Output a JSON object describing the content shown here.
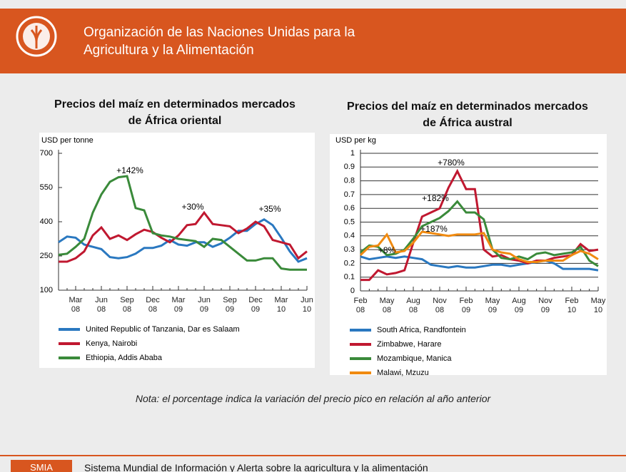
{
  "header": {
    "title_line1": "Organización de las Naciones Unidas para la",
    "title_line2": "Agricultura y la Alimentación"
  },
  "chart_data": [
    {
      "type": "line",
      "title": "Precios del maíz en determinados mercados de África oriental",
      "y_label": "USD per tonne",
      "categories": [
        null,
        null,
        "Mar 08",
        null,
        null,
        "Jun 08",
        null,
        null,
        "Sep 08",
        null,
        null,
        "Dec 08",
        null,
        null,
        "Mar 09",
        null,
        null,
        "Jun 09",
        null,
        null,
        "Sep 09",
        null,
        null,
        "Dec 09",
        null,
        null,
        "Mar 10",
        null,
        null,
        "Jun 10"
      ],
      "ylim": [
        100,
        700
      ],
      "yticks": [
        100,
        250,
        400,
        550,
        700
      ],
      "grid": false,
      "series": [
        {
          "name": "United Republic of Tanzania, Dar es Salaam",
          "color": "#2a78c0",
          "values": [
            310,
            335,
            330,
            300,
            290,
            280,
            245,
            240,
            245,
            260,
            285,
            285,
            295,
            320,
            300,
            295,
            310,
            310,
            290,
            305,
            330,
            360,
            360,
            390,
            410,
            385,
            330,
            270,
            225,
            240
          ]
        },
        {
          "name": "Kenya, Nairobi",
          "color": "#c01830",
          "values": [
            225,
            225,
            240,
            270,
            340,
            375,
            325,
            340,
            320,
            345,
            365,
            355,
            330,
            310,
            340,
            385,
            390,
            440,
            390,
            385,
            380,
            350,
            370,
            400,
            380,
            320,
            310,
            300,
            240,
            270
          ]
        },
        {
          "name": "Ethiopia, Addis Ababa",
          "color": "#3a8a3a",
          "values": [
            255,
            260,
            290,
            325,
            440,
            520,
            575,
            595,
            600,
            460,
            450,
            350,
            340,
            335,
            325,
            320,
            315,
            290,
            325,
            320,
            290,
            260,
            230,
            230,
            240,
            240,
            195,
            190,
            190,
            190
          ]
        }
      ],
      "annotations": [
        "+142%",
        "+30%",
        "+35%"
      ]
    },
    {
      "type": "line",
      "title": "Precios del maíz en determinados mercados de África austral",
      "y_label": "USD per kg",
      "categories": [
        "Feb 08",
        null,
        null,
        "May 08",
        null,
        null,
        "Aug 08",
        null,
        null,
        "Nov 08",
        null,
        null,
        "Feb 09",
        null,
        null,
        "May 09",
        null,
        null,
        "Aug 09",
        null,
        null,
        "Nov 09",
        null,
        null,
        "Feb 10",
        null,
        null,
        "May 10"
      ],
      "ylim": [
        0,
        1
      ],
      "yticks": [
        0,
        0.1,
        0.2,
        0.3,
        0.4,
        0.5,
        0.6,
        0.7,
        0.8,
        0.9,
        1
      ],
      "grid": true,
      "series": [
        {
          "name": "South Africa, Randfontein",
          "color": "#2a78c0",
          "values": [
            0.25,
            0.23,
            0.24,
            0.25,
            0.24,
            0.25,
            0.24,
            0.23,
            0.19,
            0.18,
            0.17,
            0.18,
            0.17,
            0.17,
            0.18,
            0.19,
            0.19,
            0.18,
            0.19,
            0.2,
            0.21,
            0.22,
            0.2,
            0.16,
            0.16,
            0.16,
            0.16,
            0.15
          ]
        },
        {
          "name": "Zimbabwe, Harare",
          "color": "#c01830",
          "values": [
            0.08,
            0.08,
            0.15,
            0.12,
            0.13,
            0.15,
            0.35,
            0.54,
            0.57,
            0.6,
            0.75,
            0.87,
            0.74,
            0.74,
            0.3,
            0.25,
            0.26,
            0.23,
            0.22,
            0.2,
            0.22,
            0.22,
            0.24,
            0.25,
            0.26,
            0.34,
            0.29,
            0.3
          ]
        },
        {
          "name": "Mozambique, Manica",
          "color": "#3a8a3a",
          "values": [
            0.28,
            0.33,
            0.32,
            0.26,
            0.27,
            0.3,
            0.38,
            0.47,
            0.5,
            0.53,
            0.58,
            0.65,
            0.57,
            0.57,
            0.52,
            0.3,
            0.24,
            0.23,
            0.25,
            0.23,
            0.27,
            0.28,
            0.26,
            0.27,
            0.28,
            0.32,
            0.22,
            0.18
          ]
        },
        {
          "name": "Malawi, Mzuzu",
          "color": "#f08a10",
          "values": [
            0.26,
            0.32,
            0.33,
            0.41,
            0.28,
            0.29,
            0.35,
            0.43,
            0.42,
            0.41,
            0.4,
            0.41,
            0.41,
            0.41,
            0.42,
            0.3,
            0.28,
            0.27,
            0.23,
            0.21,
            0.21,
            0.22,
            0.22,
            0.22,
            0.26,
            0.29,
            0.27,
            0.23
          ]
        }
      ],
      "annotations": [
        "+780%",
        "+182%",
        "+187%",
        "+8%"
      ]
    }
  ],
  "note": "Nota: el porcentage indica la variación del precio pico en relación al año anterior",
  "footer": {
    "tag": "SMIA",
    "text": "Sistema Mundial de Información y Alerta sobre la agricultura y la alimentación"
  }
}
